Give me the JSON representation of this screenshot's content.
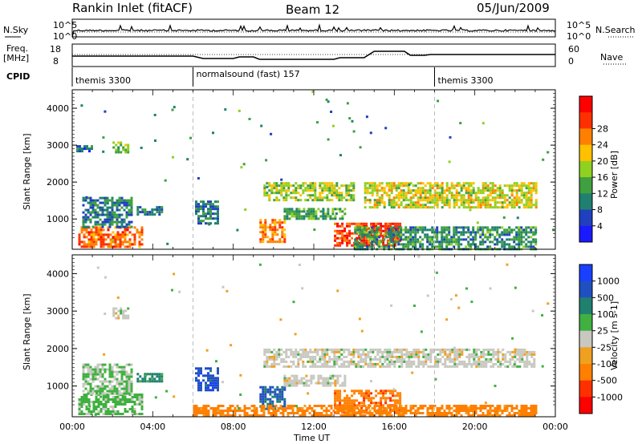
{
  "header": {
    "title": "Rankin Inlet (fitACF)",
    "beam": "Beam 12",
    "date": "05/Jun/2009"
  },
  "top_panels": {
    "nsky_label": "N.Sky",
    "nsky_ticks": [
      "10^5",
      "10^0"
    ],
    "nsearch_label": "N.Search",
    "nsearch_ticks": [
      "10^5",
      "10^0"
    ],
    "freq_label": "Freq.",
    "freq_unit": "[MHz]",
    "freq_ticks": [
      "18",
      "8"
    ],
    "nave_label": "Nave",
    "nave_ticks": [
      "60",
      "0"
    ],
    "cpid_label": "CPID",
    "cpid_segments": [
      {
        "label": "themis 3300",
        "start": 0,
        "end": 6
      },
      {
        "label": "normalsound (fast) 157",
        "start": 6,
        "end": 18
      },
      {
        "label": "themis 3300",
        "start": 18,
        "end": 24
      }
    ]
  },
  "chart_data": [
    {
      "type": "heatmap",
      "name": "power",
      "ylabel": "Slant Range [km]",
      "ylim": [
        180,
        4500
      ],
      "yticks": [
        "1000",
        "2000",
        "3000",
        "4000"
      ],
      "xlabel": "",
      "xlim": [
        0,
        24
      ],
      "colorbar": {
        "label": "Power [dB]",
        "ticks": [
          "4",
          "8",
          "12",
          "16",
          "20",
          "24",
          "28"
        ],
        "colors": [
          "#1a1aff",
          "#2040c0",
          "#208070",
          "#40a040",
          "#90d020",
          "#ffc000",
          "#ff8000",
          "#ff3000",
          "#ff0000"
        ]
      },
      "regions": [
        {
          "t0": 0.3,
          "t1": 3.5,
          "r0": 250,
          "r1": 800,
          "v": 26
        },
        {
          "t0": 0.5,
          "t1": 3.0,
          "r0": 800,
          "r1": 1600,
          "v": 8
        },
        {
          "t0": 2.0,
          "t1": 2.8,
          "r0": 2800,
          "r1": 3100,
          "v": 14
        },
        {
          "t0": 0.2,
          "t1": 1.0,
          "r0": 2850,
          "r1": 3000,
          "v": 6
        },
        {
          "t0": 3.2,
          "t1": 4.4,
          "r0": 1150,
          "r1": 1350,
          "v": 8
        },
        {
          "t0": 6.1,
          "t1": 7.2,
          "r0": 900,
          "r1": 1500,
          "v": 8
        },
        {
          "t0": 9.3,
          "t1": 10.5,
          "r0": 400,
          "r1": 1000,
          "v": 24
        },
        {
          "t0": 9.5,
          "t1": 14.0,
          "r0": 1500,
          "r1": 2000,
          "v": 16
        },
        {
          "t0": 13.0,
          "t1": 16.3,
          "r0": 300,
          "r1": 900,
          "v": 28
        },
        {
          "t0": 10.5,
          "t1": 13.5,
          "r0": 1000,
          "r1": 1300,
          "v": 12
        },
        {
          "t0": 14.5,
          "t1": 23.0,
          "r0": 1300,
          "r1": 2000,
          "v": 18
        },
        {
          "t0": 14.0,
          "t1": 23.0,
          "r0": 200,
          "r1": 800,
          "v": 10
        }
      ]
    },
    {
      "type": "heatmap",
      "name": "velocity",
      "ylabel": "Slant Range [km]",
      "ylim": [
        180,
        4500
      ],
      "yticks": [
        "1000",
        "2000",
        "3000",
        "4000"
      ],
      "xlabel": "Time UT",
      "xlim": [
        0,
        24
      ],
      "xticks": [
        "00:00",
        "04:00",
        "08:00",
        "12:00",
        "16:00",
        "20:00",
        "00:00"
      ],
      "colorbar": {
        "label": "Velocity [m s-1]",
        "ticks": [
          "1000",
          "500",
          "100",
          "25",
          "-25",
          "-100",
          "-500",
          "-1000"
        ],
        "colors": [
          "#1a40ff",
          "#2050c0",
          "#208070",
          "#40b040",
          "#c8c8c0",
          "#f0a020",
          "#ff8000",
          "#ff3000",
          "#ff0000"
        ]
      },
      "ground_scatter_color": "#c0c0c0",
      "regions": [
        {
          "t0": 0.3,
          "t1": 3.5,
          "r0": 250,
          "r1": 800,
          "v": 40
        },
        {
          "t0": 0.5,
          "t1": 3.0,
          "r0": 800,
          "r1": 1600,
          "v": 25
        },
        {
          "t0": 2.0,
          "t1": 2.8,
          "r0": 2800,
          "r1": 3100,
          "v": 0
        },
        {
          "t0": 3.2,
          "t1": 4.4,
          "r0": 1150,
          "r1": 1350,
          "v": 150
        },
        {
          "t0": 6.1,
          "t1": 7.2,
          "r0": 900,
          "r1": 1500,
          "v": 800
        },
        {
          "t0": 9.3,
          "t1": 10.5,
          "r0": 400,
          "r1": 1000,
          "v": 600
        },
        {
          "t0": 9.5,
          "t1": 23.0,
          "r0": 1500,
          "r1": 2000,
          "v": 0
        },
        {
          "t0": 13.0,
          "t1": 16.3,
          "r0": 300,
          "r1": 900,
          "v": -400
        },
        {
          "t0": 10.5,
          "t1": 13.5,
          "r0": 1000,
          "r1": 1300,
          "v": 0
        },
        {
          "t0": 6.0,
          "t1": 23.0,
          "r0": 200,
          "r1": 500,
          "v": -150
        }
      ]
    }
  ]
}
